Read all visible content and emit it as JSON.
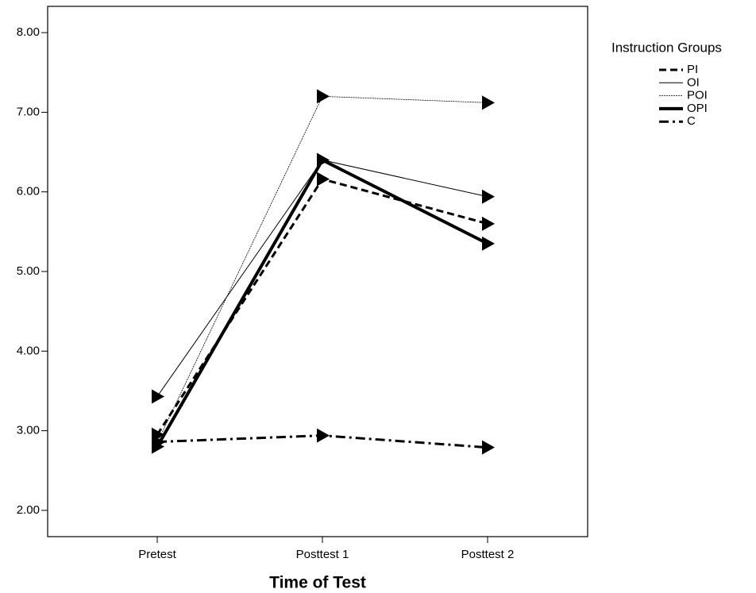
{
  "chart_data": {
    "type": "line",
    "x_label": "Time of Test",
    "categories": [
      "Pretest",
      "Posttest 1",
      "Posttest 2"
    ],
    "legend_title": "Instruction Groups",
    "legend": "right",
    "marker": "triangle-right",
    "series": [
      {
        "name": "PI",
        "color": "#000000",
        "line_style": "dashed",
        "values": [
          2.95,
          6.16,
          5.6
        ]
      },
      {
        "name": "OI",
        "color": "#000000",
        "line_style": "thin",
        "values": [
          3.43,
          6.4,
          5.94
        ]
      },
      {
        "name": "POI",
        "color": "#000000",
        "line_style": "dotted",
        "values": [
          2.85,
          7.2,
          7.12
        ]
      },
      {
        "name": "OPI",
        "color": "#000000",
        "line_style": "thick",
        "values": [
          2.8,
          6.4,
          5.35
        ]
      },
      {
        "name": "C",
        "color": "#000000",
        "line_style": "dashdot",
        "values": [
          2.86,
          2.94,
          2.79
        ]
      }
    ],
    "ylim": [
      1.67,
      8.33
    ],
    "yticks": [
      {
        "value": 2,
        "label": "2.00"
      },
      {
        "value": 3,
        "label": "3.00"
      },
      {
        "value": 4,
        "label": "4.00"
      },
      {
        "value": 5,
        "label": "5.00"
      },
      {
        "value": 6,
        "label": "6.00"
      },
      {
        "value": 7,
        "label": "7.00"
      },
      {
        "value": 8,
        "label": "8.00"
      }
    ]
  }
}
